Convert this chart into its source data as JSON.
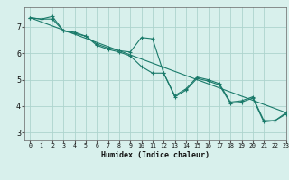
{
  "xlabel": "Humidex (Indice chaleur)",
  "xlim": [
    -0.5,
    23
  ],
  "ylim": [
    2.7,
    7.75
  ],
  "yticks": [
    3,
    4,
    5,
    6,
    7
  ],
  "xticks": [
    0,
    1,
    2,
    3,
    4,
    5,
    6,
    7,
    8,
    9,
    10,
    11,
    12,
    13,
    14,
    15,
    16,
    17,
    18,
    19,
    20,
    21,
    22,
    23
  ],
  "bg_color": "#d8f0ec",
  "grid_color": "#aed4ce",
  "line_color": "#1a7a6a",
  "line1_x": [
    0,
    1,
    2,
    3,
    4,
    5,
    6,
    7,
    8,
    9,
    10,
    11,
    12,
    13,
    14,
    15,
    16,
    17,
    18,
    19,
    20,
    21,
    22,
    23
  ],
  "line1_y": [
    7.35,
    7.3,
    7.4,
    6.85,
    6.8,
    6.65,
    6.35,
    6.2,
    6.1,
    6.05,
    6.6,
    6.55,
    5.25,
    4.4,
    4.65,
    5.1,
    5.0,
    4.85,
    4.15,
    4.2,
    4.35,
    3.45,
    3.45,
    3.75
  ],
  "line2_x": [
    0,
    1,
    2,
    3,
    4,
    5,
    6,
    7,
    8,
    9,
    10,
    11,
    12,
    13,
    14,
    15,
    16,
    17,
    18,
    19,
    20,
    21,
    22,
    23
  ],
  "line2_y": [
    7.35,
    7.3,
    7.3,
    6.85,
    6.75,
    6.65,
    6.3,
    6.15,
    6.05,
    5.9,
    5.5,
    5.25,
    5.25,
    4.35,
    4.6,
    5.05,
    4.95,
    4.8,
    4.1,
    4.15,
    4.3,
    3.4,
    3.45,
    3.7
  ],
  "line3_x": [
    0,
    23
  ],
  "line3_y": [
    7.35,
    3.75
  ]
}
